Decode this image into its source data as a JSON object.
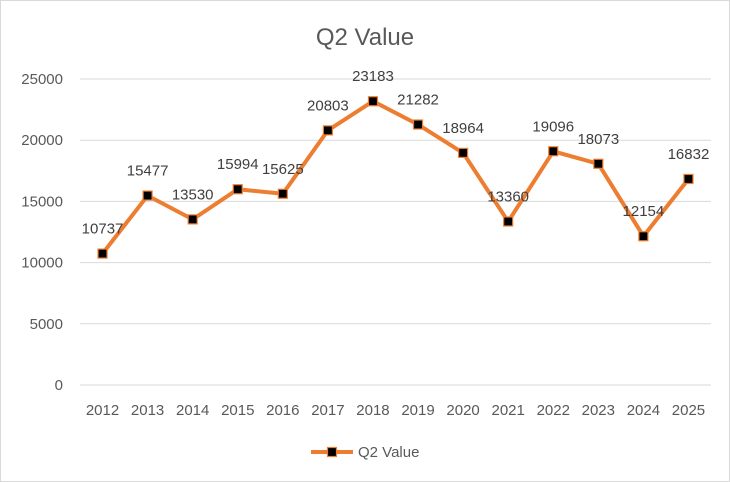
{
  "chart_data": {
    "type": "line",
    "title": "Q2 Value",
    "xlabel": "",
    "ylabel": "",
    "categories": [
      "2012",
      "2013",
      "2014",
      "2015",
      "2016",
      "2017",
      "2018",
      "2019",
      "2020",
      "2021",
      "2022",
      "2023",
      "2024",
      "2025"
    ],
    "series": [
      {
        "name": "Q2 Value",
        "values": [
          10737,
          15477,
          13530,
          15994,
          15625,
          20803,
          23183,
          21282,
          18964,
          13360,
          19096,
          18073,
          12154,
          16832
        ],
        "line_color": "#ED7D31",
        "marker_color": "#000000",
        "marker": "square"
      }
    ],
    "ylim": [
      0,
      25000
    ],
    "yticks": [
      "0",
      "5000",
      "10000",
      "15000",
      "20000",
      "25000"
    ],
    "grid": true,
    "data_labels": true,
    "legend_position": "bottom"
  }
}
